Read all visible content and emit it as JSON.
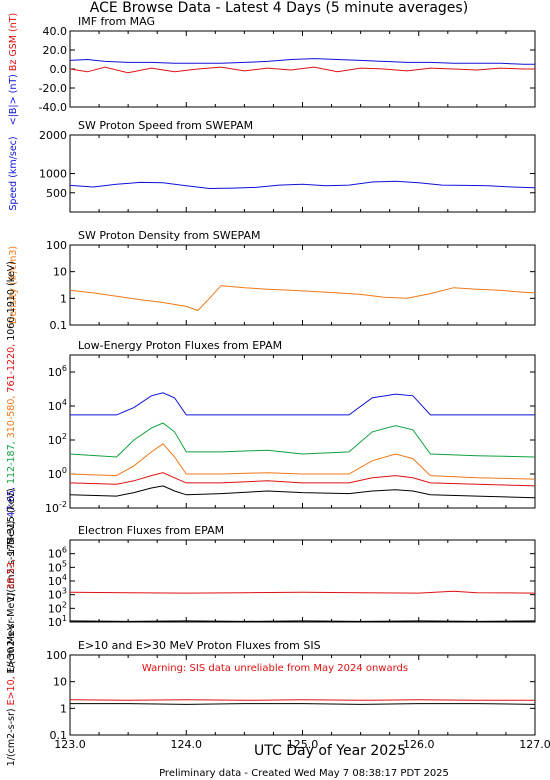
{
  "page": {
    "title": "ACE Browse Data - Latest 4 Days (5 minute averages)",
    "xlabel": "UTC Day of Year 2025",
    "footer": "Preliminary data - Created Wed May  7 08:38:17 PDT 2025"
  },
  "colors": {
    "blue": "#1010d8",
    "red": "#e01010",
    "orange": "#f07818",
    "green": "#10a040",
    "black": "#000000",
    "purple": "#8020a0"
  },
  "x_axis": {
    "range": [
      123.0,
      127.0
    ],
    "tick_labels": [
      "123.0",
      "124.0",
      "125.0",
      "126.0",
      "127.0"
    ]
  },
  "chart_data": [
    {
      "type": "line",
      "title": "IMF from MAG",
      "ylim": [
        -40,
        40
      ],
      "log": false,
      "tick_labels": [
        "40.0",
        "20.0",
        "0.0",
        "-20.0",
        "-40.0"
      ],
      "ylabel_lines": [
        {
          "text": "<|B|> (nT)",
          "color": "#1010d8"
        },
        {
          "text": "Bz GSM (nT)",
          "color": "#e01010"
        }
      ],
      "series": [
        {
          "color": "#1010d8",
          "x": [
            123.0,
            123.15,
            123.3,
            123.5,
            123.7,
            123.9,
            124.1,
            124.3,
            124.5,
            124.7,
            124.9,
            125.1,
            125.3,
            125.5,
            125.7,
            125.9,
            126.1,
            126.3,
            126.5,
            126.7,
            126.9,
            127.0
          ],
          "y": [
            9,
            10,
            8,
            7,
            7,
            6,
            6,
            6,
            7,
            8,
            10,
            11,
            10,
            9,
            8,
            7,
            7,
            6,
            6,
            6,
            5,
            5
          ]
        },
        {
          "color": "#e01010",
          "x": [
            123.0,
            123.15,
            123.3,
            123.5,
            123.7,
            123.9,
            124.1,
            124.3,
            124.5,
            124.7,
            124.9,
            125.1,
            125.3,
            125.5,
            125.7,
            125.9,
            126.1,
            126.3,
            126.5,
            126.7,
            126.9,
            127.0
          ],
          "y": [
            0,
            -3,
            2,
            -4,
            1,
            -3,
            0,
            2,
            -2,
            1,
            -1,
            2,
            -3,
            1,
            0,
            -2,
            1,
            0,
            -1,
            1,
            0,
            0
          ]
        }
      ]
    },
    {
      "type": "line",
      "title": "SW Proton Speed from SWEPAM",
      "ylim": [
        0,
        2000
      ],
      "log": false,
      "tick_labels": [
        "2000",
        "1000",
        "500"
      ],
      "tick_values": [
        2000,
        1000,
        500
      ],
      "ylabel_lines": [
        {
          "text": "Speed (km/sec)",
          "color": "#1010d8"
        }
      ],
      "series": [
        {
          "color": "#1010d8",
          "x": [
            123.0,
            123.2,
            123.4,
            123.6,
            123.8,
            124.0,
            124.2,
            124.4,
            124.6,
            124.8,
            125.0,
            125.2,
            125.4,
            125.6,
            125.8,
            126.0,
            126.2,
            126.4,
            126.6,
            126.8,
            127.0
          ],
          "y": [
            690,
            650,
            720,
            770,
            760,
            680,
            610,
            620,
            640,
            700,
            720,
            680,
            700,
            780,
            800,
            760,
            700,
            690,
            680,
            650,
            630
          ]
        }
      ]
    },
    {
      "type": "line",
      "title": "SW Proton Density from SWEPAM",
      "ylim": [
        0.1,
        100
      ],
      "log": true,
      "tick_labels": [
        "100",
        "10",
        "1",
        "0.1"
      ],
      "tick_values": [
        100,
        10,
        1,
        0.1
      ],
      "ylabel_lines": [
        {
          "text": "Density (#/cm3)",
          "color": "#f07818"
        }
      ],
      "series": [
        {
          "color": "#f07818",
          "x": [
            123.0,
            123.2,
            123.4,
            123.6,
            123.8,
            124.0,
            124.1,
            124.2,
            124.3,
            124.5,
            124.7,
            124.9,
            125.1,
            125.3,
            125.5,
            125.7,
            125.9,
            126.1,
            126.3,
            126.5,
            126.7,
            126.9,
            127.0
          ],
          "y": [
            2,
            1.6,
            1.2,
            0.9,
            0.7,
            0.5,
            0.35,
            1.0,
            3.0,
            2.5,
            2.2,
            2.0,
            1.8,
            1.6,
            1.4,
            1.1,
            1.0,
            1.5,
            2.5,
            2.2,
            2.0,
            1.7,
            1.6
          ]
        }
      ]
    },
    {
      "type": "line",
      "title": "Low-Energy Proton Fluxes from EPAM",
      "ylim": [
        0.01,
        10000000
      ],
      "log": true,
      "tick_labels": [
        "10^6",
        "10^4",
        "10^2",
        "10^0",
        "10^-2"
      ],
      "tick_values": [
        1000000,
        10000,
        100,
        1,
        0.01
      ],
      "ylabel_lines": [
        {
          "text": "1/(cm2-s-sr-MeV)",
          "color": "#000000"
        },
        {
          "text": "47-65,",
          "color": "#1010d8"
        },
        {
          "text": "112-187,",
          "color": "#10a040"
        },
        {
          "text": "310-580,",
          "color": "#f07818"
        },
        {
          "text": "761-1220,",
          "color": "#e01010"
        },
        {
          "text": "1060-1910 (keV)",
          "color": "#000000"
        }
      ],
      "series": [
        {
          "color": "#1010d8",
          "x": [
            123.0,
            123.4,
            123.55,
            123.7,
            123.8,
            123.9,
            124.0,
            124.3,
            124.7,
            125.0,
            125.4,
            125.6,
            125.8,
            125.95,
            126.1,
            126.5,
            127.0
          ],
          "y": [
            3000,
            3000,
            8000,
            40000,
            60000,
            30000,
            3000,
            3000,
            3000,
            3000,
            3000,
            30000,
            50000,
            40000,
            3000,
            3000,
            3000
          ]
        },
        {
          "color": "#10a040",
          "x": [
            123.0,
            123.4,
            123.55,
            123.7,
            123.8,
            123.9,
            124.0,
            124.3,
            124.7,
            125.0,
            125.4,
            125.6,
            125.8,
            125.95,
            126.1,
            126.5,
            127.0
          ],
          "y": [
            15,
            10,
            100,
            500,
            1000,
            300,
            20,
            20,
            25,
            15,
            20,
            300,
            700,
            400,
            15,
            12,
            10
          ]
        },
        {
          "color": "#f07818",
          "x": [
            123.0,
            123.4,
            123.55,
            123.7,
            123.8,
            123.9,
            124.0,
            124.3,
            124.7,
            125.0,
            125.4,
            125.6,
            125.8,
            125.95,
            126.1,
            126.5,
            127.0
          ],
          "y": [
            1,
            0.8,
            3,
            20,
            60,
            10,
            1,
            1,
            1.2,
            1,
            1,
            6,
            15,
            8,
            0.8,
            0.6,
            0.5
          ]
        },
        {
          "color": "#e01010",
          "x": [
            123.0,
            123.4,
            123.55,
            123.7,
            123.8,
            123.9,
            124.0,
            124.3,
            124.7,
            125.0,
            125.4,
            125.6,
            125.8,
            125.95,
            126.1,
            126.5,
            127.0
          ],
          "y": [
            0.3,
            0.25,
            0.4,
            0.8,
            1.2,
            0.6,
            0.3,
            0.3,
            0.4,
            0.3,
            0.3,
            0.6,
            0.8,
            0.6,
            0.3,
            0.25,
            0.2
          ]
        },
        {
          "color": "#000000",
          "x": [
            123.0,
            123.4,
            123.55,
            123.7,
            123.8,
            123.9,
            124.0,
            124.3,
            124.7,
            125.0,
            125.4,
            125.6,
            125.8,
            125.95,
            126.1,
            126.5,
            127.0
          ],
          "y": [
            0.06,
            0.05,
            0.08,
            0.15,
            0.2,
            0.1,
            0.06,
            0.07,
            0.1,
            0.08,
            0.07,
            0.1,
            0.12,
            0.1,
            0.06,
            0.05,
            0.04
          ]
        }
      ]
    },
    {
      "type": "line",
      "title": "Electron Fluxes from EPAM",
      "ylim": [
        10,
        10000000
      ],
      "log": true,
      "tick_labels": [
        "10^6",
        "10^5",
        "10^4",
        "10^3",
        "10^2",
        "10^1"
      ],
      "tick_values": [
        1000000,
        100000,
        10000,
        1000,
        100,
        10
      ],
      "ylabel_lines": [
        {
          "text": "1/(cm2-s-sr-MeV)",
          "color": "#000000"
        },
        {
          "text": "38-53,",
          "color": "#e01010"
        },
        {
          "text": "175-315 (keV)",
          "color": "#000000"
        }
      ],
      "series": [
        {
          "color": "#e01010",
          "x": [
            123.0,
            123.5,
            124.0,
            124.5,
            125.0,
            125.5,
            126.0,
            126.3,
            126.5,
            127.0
          ],
          "y": [
            1500,
            1400,
            1300,
            1400,
            1500,
            1400,
            1300,
            1800,
            1400,
            1300
          ]
        },
        {
          "color": "#000000",
          "x": [
            123.0,
            123.5,
            124.0,
            124.5,
            125.0,
            125.5,
            126.0,
            126.5,
            127.0
          ],
          "y": [
            12,
            11,
            12,
            11,
            12,
            11,
            12,
            11,
            12
          ]
        }
      ]
    },
    {
      "type": "line",
      "title": "E>10 and E>30 MeV Proton Fluxes from SIS",
      "ylim": [
        0.1,
        100
      ],
      "log": true,
      "tick_labels": [
        "100",
        "10",
        "1",
        "0.1"
      ],
      "tick_values": [
        100,
        10,
        1,
        0.1
      ],
      "warning": "Warning: SIS data unreliable from May 2024 onwards",
      "ylabel_lines": [
        {
          "text": "1/(cm2-s-sr)",
          "color": "#000000"
        },
        {
          "text": "E>10,",
          "color": "#e01010"
        },
        {
          "text": "E>30 MeV",
          "color": "#000000"
        }
      ],
      "series": [
        {
          "color": "#e01010",
          "x": [
            123.0,
            123.5,
            124.0,
            124.5,
            125.0,
            125.5,
            126.0,
            126.5,
            127.0
          ],
          "y": [
            2.1,
            2.0,
            2.1,
            2.0,
            2.1,
            2.0,
            2.1,
            2.0,
            2.0
          ]
        },
        {
          "color": "#000000",
          "x": [
            123.0,
            123.5,
            124.0,
            124.5,
            125.0,
            125.5,
            126.0,
            126.5,
            127.0
          ],
          "y": [
            1.5,
            1.5,
            1.4,
            1.5,
            1.5,
            1.4,
            1.5,
            1.5,
            1.4
          ]
        }
      ]
    }
  ]
}
